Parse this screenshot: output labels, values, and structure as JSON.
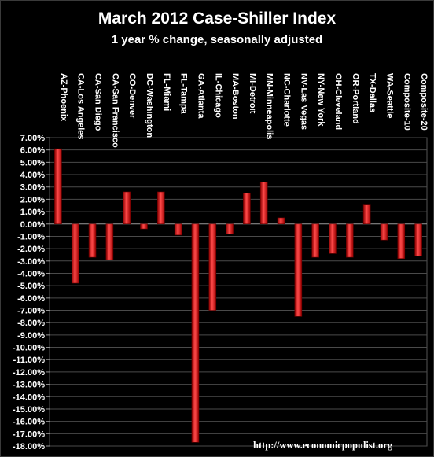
{
  "chart_data": {
    "type": "bar",
    "title": "March 2012 Case-Shiller Index",
    "subtitle": "1 year % change, seasonally adjusted",
    "categories": [
      "AZ-Phoenix",
      "CA-Los Angeles",
      "CA-San Diego",
      "CA-San Francisco",
      "CO-Denver",
      "DC-Washington",
      "FL-Miami",
      "FL-Tampa",
      "GA-Atlanta",
      "IL-Chicago",
      "MA-Boston",
      "MI-Detroit",
      "MN-Minneapolis",
      "NC-Charlotte",
      "NV-Las Vegas",
      "NY-New York",
      "OH-Cleveland",
      "OR-Portland",
      "TX-Dallas",
      "WA-Seattle",
      "Composite-10",
      "Composite-20"
    ],
    "values": [
      6.1,
      -4.8,
      -2.7,
      -2.9,
      2.6,
      -0.4,
      2.6,
      -0.9,
      -17.7,
      -7.0,
      -0.8,
      2.5,
      3.4,
      0.5,
      -7.5,
      -2.7,
      -2.4,
      -2.7,
      1.6,
      -1.3,
      -2.8,
      -2.6
    ],
    "ylim": [
      -18,
      7
    ],
    "yticks": [
      "7.00%",
      "6.00%",
      "5.00%",
      "4.00%",
      "3.00%",
      "2.00%",
      "1.00%",
      "0.00%",
      "-1.00%",
      "-2.00%",
      "-3.00%",
      "-4.00%",
      "-5.00%",
      "-6.00%",
      "-7.00%",
      "-8.00%",
      "-9.00%",
      "-10.00%",
      "-11.00%",
      "-12.00%",
      "-13.00%",
      "-14.00%",
      "-15.00%",
      "-16.00%",
      "-17.00%",
      "-18.00%"
    ],
    "grid": true,
    "bar_color": "#e02020",
    "background": "#000000"
  },
  "watermark": "http://www.economicpopulist.org"
}
